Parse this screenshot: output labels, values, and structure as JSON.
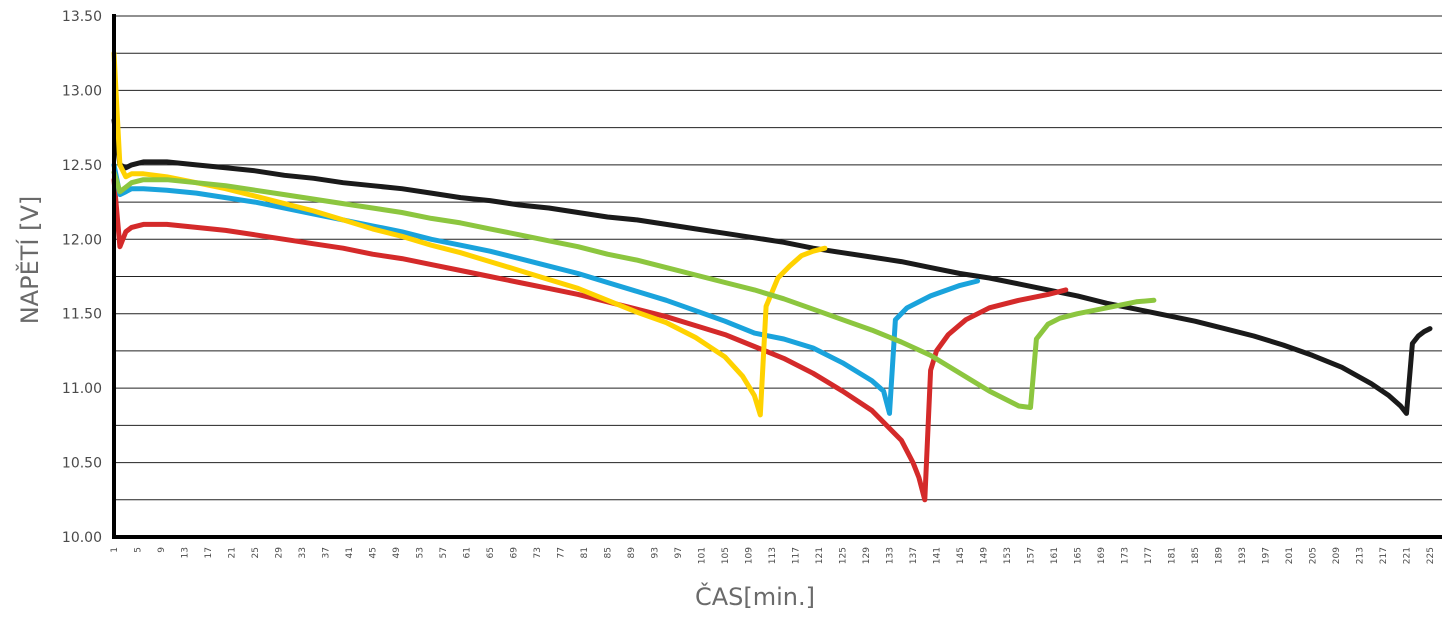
{
  "chart_data": {
    "type": "line",
    "title": "",
    "xlabel": "ČAS[min.]",
    "ylabel": "NAPĚTÍ [V]",
    "xlim": [
      1,
      225
    ],
    "ylim": [
      10.0,
      13.5
    ],
    "grid": true,
    "y_ticks": [
      "10.00",
      "10.50",
      "11.00",
      "11.50",
      "12.00",
      "12.50",
      "13.00",
      "13.50"
    ],
    "x_ticks": [
      "1",
      "5",
      "9",
      "13",
      "17",
      "21",
      "25",
      "29",
      "33",
      "37",
      "41",
      "45",
      "49",
      "53",
      "57",
      "61",
      "65",
      "69",
      "73",
      "77",
      "81",
      "85",
      "89",
      "93",
      "97",
      "101",
      "105",
      "109",
      "113",
      "117",
      "121",
      "125",
      "129",
      "133",
      "137",
      "141",
      "145",
      "149",
      "153",
      "157",
      "161",
      "165",
      "169",
      "173",
      "177",
      "181",
      "185",
      "189",
      "193",
      "197",
      "201",
      "205",
      "209",
      "213",
      "217",
      "221",
      "225"
    ],
    "series": [
      {
        "color": "#1a1a1a",
        "x": [
          1,
          2,
          3,
          4,
          6,
          10,
          15,
          20,
          25,
          30,
          35,
          40,
          45,
          50,
          55,
          60,
          65,
          70,
          75,
          80,
          85,
          90,
          95,
          100,
          105,
          110,
          115,
          120,
          125,
          130,
          135,
          140,
          145,
          150,
          155,
          160,
          165,
          170,
          175,
          180,
          185,
          190,
          195,
          200,
          205,
          210,
          215,
          218,
          220,
          221,
          222,
          223,
          224,
          225
        ],
        "y": [
          12.8,
          12.5,
          12.48,
          12.5,
          12.52,
          12.52,
          12.5,
          12.48,
          12.46,
          12.43,
          12.41,
          12.38,
          12.36,
          12.34,
          12.31,
          12.28,
          12.26,
          12.23,
          12.21,
          12.18,
          12.15,
          12.13,
          12.1,
          12.07,
          12.04,
          12.01,
          11.98,
          11.94,
          11.91,
          11.88,
          11.85,
          11.81,
          11.77,
          11.74,
          11.7,
          11.66,
          11.62,
          11.57,
          11.53,
          11.49,
          11.45,
          11.4,
          11.35,
          11.29,
          11.22,
          11.14,
          11.03,
          10.95,
          10.88,
          10.83,
          11.3,
          11.35,
          11.38,
          11.4
        ]
      },
      {
        "color": "#d42a2a",
        "x": [
          1,
          2,
          3,
          4,
          6,
          10,
          15,
          20,
          25,
          30,
          35,
          40,
          45,
          50,
          55,
          60,
          65,
          70,
          75,
          80,
          85,
          90,
          95,
          100,
          105,
          110,
          115,
          120,
          125,
          130,
          135,
          137,
          138,
          139,
          140,
          141,
          143,
          146,
          150,
          155,
          160,
          163
        ],
        "y": [
          12.4,
          11.95,
          12.05,
          12.08,
          12.1,
          12.1,
          12.08,
          12.06,
          12.03,
          12.0,
          11.97,
          11.94,
          11.9,
          11.87,
          11.83,
          11.79,
          11.75,
          11.71,
          11.67,
          11.63,
          11.58,
          11.53,
          11.48,
          11.42,
          11.36,
          11.28,
          11.2,
          11.1,
          10.98,
          10.85,
          10.65,
          10.5,
          10.4,
          10.25,
          11.12,
          11.25,
          11.36,
          11.46,
          11.54,
          11.59,
          11.63,
          11.66
        ]
      },
      {
        "color": "#1aa3dc",
        "x": [
          1,
          2,
          3,
          4,
          6,
          10,
          15,
          20,
          25,
          30,
          35,
          40,
          45,
          50,
          55,
          60,
          65,
          70,
          75,
          80,
          85,
          90,
          95,
          100,
          105,
          110,
          115,
          120,
          125,
          130,
          132,
          133,
          134,
          136,
          140,
          145,
          148
        ],
        "y": [
          12.5,
          12.3,
          12.32,
          12.34,
          12.34,
          12.33,
          12.31,
          12.28,
          12.25,
          12.21,
          12.17,
          12.13,
          12.09,
          12.05,
          12.0,
          11.96,
          11.92,
          11.87,
          11.82,
          11.77,
          11.71,
          11.65,
          11.59,
          11.52,
          11.45,
          11.37,
          11.33,
          11.27,
          11.17,
          11.05,
          10.98,
          10.83,
          11.46,
          11.54,
          11.62,
          11.69,
          11.72
        ]
      },
      {
        "color": "#ffd200",
        "x": [
          1,
          2,
          3,
          4,
          6,
          10,
          15,
          20,
          25,
          30,
          35,
          40,
          45,
          50,
          55,
          60,
          65,
          70,
          75,
          80,
          85,
          90,
          95,
          100,
          105,
          108,
          110,
          111,
          112,
          114,
          116,
          118,
          120,
          122
        ],
        "y": [
          13.25,
          12.5,
          12.42,
          12.44,
          12.44,
          12.42,
          12.38,
          12.34,
          12.29,
          12.24,
          12.19,
          12.13,
          12.07,
          12.02,
          11.96,
          11.91,
          11.85,
          11.79,
          11.73,
          11.67,
          11.59,
          11.51,
          11.44,
          11.34,
          11.21,
          11.08,
          10.95,
          10.82,
          11.55,
          11.74,
          11.82,
          11.89,
          11.92,
          11.94
        ]
      },
      {
        "color": "#8cc63f",
        "x": [
          1,
          2,
          3,
          4,
          6,
          10,
          15,
          20,
          25,
          30,
          35,
          40,
          45,
          50,
          55,
          60,
          65,
          70,
          75,
          80,
          85,
          90,
          95,
          100,
          105,
          110,
          115,
          120,
          125,
          130,
          135,
          140,
          145,
          150,
          155,
          157,
          158,
          160,
          162,
          165,
          170,
          175,
          178
        ],
        "y": [
          12.45,
          12.32,
          12.35,
          12.38,
          12.4,
          12.4,
          12.38,
          12.36,
          12.33,
          12.3,
          12.27,
          12.24,
          12.21,
          12.18,
          12.14,
          12.11,
          12.07,
          12.03,
          11.99,
          11.95,
          11.9,
          11.86,
          11.81,
          11.76,
          11.71,
          11.66,
          11.6,
          11.53,
          11.46,
          11.39,
          11.31,
          11.22,
          11.1,
          10.98,
          10.88,
          10.87,
          11.33,
          11.43,
          11.47,
          11.5,
          11.54,
          11.58,
          11.59
        ]
      }
    ]
  }
}
